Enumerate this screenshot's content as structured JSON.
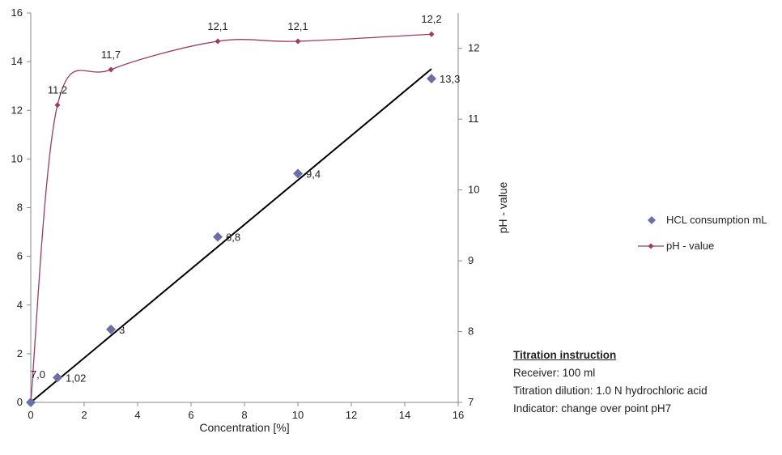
{
  "chart_data": {
    "type": "scatter",
    "xlabel": "Concentration [%]",
    "ylabel": "",
    "y2label": "pH - value",
    "xlim": [
      0,
      16
    ],
    "ylim": [
      0,
      16
    ],
    "y2lim": [
      7,
      12.5
    ],
    "x_ticks": [
      0,
      2,
      4,
      6,
      8,
      10,
      12,
      14,
      16
    ],
    "y_ticks": [
      0,
      2,
      4,
      6,
      8,
      10,
      12,
      14,
      16
    ],
    "y2_ticks": [
      7,
      8,
      9,
      10,
      11,
      12
    ],
    "grid": false,
    "legend_position": "right",
    "series": [
      {
        "name": "HCL consumption mL",
        "axis": "left",
        "marker": "diamond",
        "color": "#6b6fa8",
        "x": [
          0,
          1,
          3,
          7,
          10,
          15
        ],
        "y": [
          0,
          1.02,
          3,
          6.8,
          9.4,
          13.3
        ],
        "labels": [
          "",
          "1,02",
          "3",
          "6,8",
          "9,4",
          "13,3"
        ]
      },
      {
        "name": "pH - value",
        "axis": "right",
        "marker": "small-diamond",
        "line": "smooth",
        "color": "#9e3a63",
        "x": [
          0,
          1,
          3,
          7,
          10,
          15
        ],
        "y": [
          7.0,
          11.2,
          11.7,
          12.1,
          12.1,
          12.2
        ],
        "labels": [
          "7,0",
          "11,2",
          "11,7",
          "12,1",
          "12,1",
          "12,2"
        ]
      }
    ],
    "trendline": {
      "series": "HCL consumption mL",
      "type": "linear",
      "color": "#000000",
      "x": [
        0,
        15
      ],
      "y": [
        0,
        13.7
      ]
    }
  },
  "instruction": {
    "title": "Titration instruction",
    "lines": [
      "Receiver: 100 ml",
      "Titration dilution: 1.0 N hydrochloric acid",
      "Indicator: change over point pH7"
    ]
  }
}
